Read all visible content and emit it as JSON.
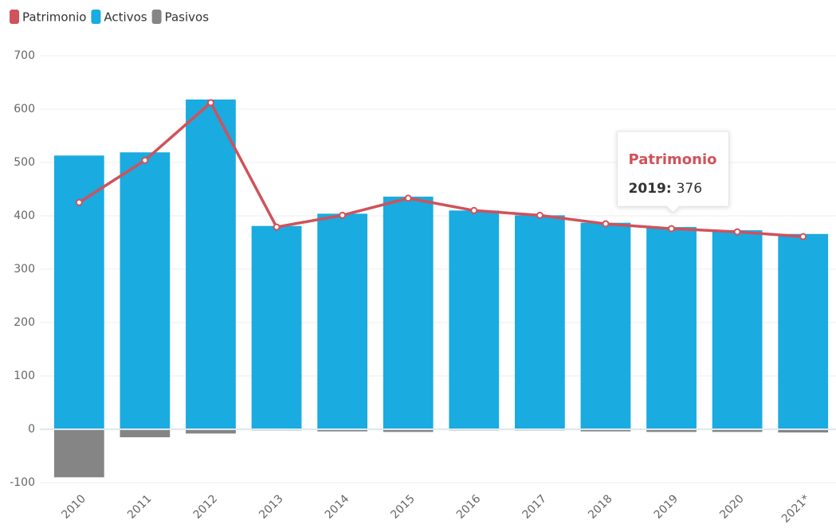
{
  "chart_data": {
    "type": "bar-line",
    "categories": [
      "2010",
      "2011",
      "2012",
      "2013",
      "2014",
      "2015",
      "2016",
      "2017",
      "2018",
      "2019",
      "2020",
      "2021*"
    ],
    "series": [
      {
        "name": "Patrimonio",
        "color": "#d0525a",
        "type": "line",
        "values": [
          425,
          504,
          612,
          379,
          401,
          433,
          410,
          401,
          385,
          376,
          370,
          361
        ]
      },
      {
        "name": "Activos",
        "color": "#1aabe0",
        "type": "bar",
        "values": [
          513,
          519,
          618,
          381,
          404,
          436,
          410,
          401,
          387,
          379,
          373,
          366
        ]
      },
      {
        "name": "Pasivos",
        "color": "#858585",
        "type": "bar",
        "values": [
          -90,
          -15,
          -8,
          -2,
          -4,
          -5,
          -2,
          -2,
          -4,
          -5,
          -5,
          -6
        ]
      }
    ],
    "ylim": [
      -100,
      700
    ],
    "yticks": [
      -100,
      0,
      100,
      200,
      300,
      400,
      500,
      600,
      700
    ],
    "grid": true,
    "tooltip": {
      "series": 0,
      "index": 9
    }
  }
}
